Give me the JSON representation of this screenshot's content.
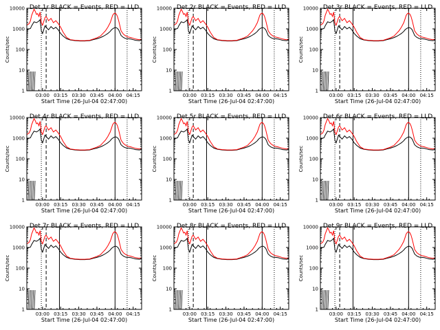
{
  "chart_data": {
    "type": "line",
    "figure": {
      "rows": 3,
      "cols": 3,
      "background": "#ffffff",
      "axis_color": "#000000",
      "series_colors": {
        "events": "#000000",
        "lld": "#ff0000"
      }
    },
    "panels": [
      {
        "title": "Det 1r BLACK = Events, RED = LLD"
      },
      {
        "title": "Det 2r BLACK = Events, RED = LLD"
      },
      {
        "title": "Det 3r BLACK = Events, RED = LLD"
      },
      {
        "title": "Det 4r BLACK = Events, RED = LLD"
      },
      {
        "title": "Det 5r BLACK = Events, RED = LLD"
      },
      {
        "title": "Det 6r BLACK = Events, RED = LLD"
      },
      {
        "title": "Det 7r BLACK = Events, RED = LLD"
      },
      {
        "title": "Det 8r BLACK = Events, RED = LLD"
      },
      {
        "title": "Det 9r BLACK = Events, RED = LLD"
      }
    ],
    "xlabel": "Start Time (26-Jul-04 02:47:00)",
    "ylabel": "Counts/sec",
    "x_unit": "minutes after 02:47:00",
    "xlim": [
      0,
      95
    ],
    "x_ticks": [
      {
        "label": "03:00",
        "value": 13
      },
      {
        "label": "03:15",
        "value": 28
      },
      {
        "label": "03:30",
        "value": 43
      },
      {
        "label": "03:45",
        "value": 58
      },
      {
        "label": "04:00",
        "value": 73
      },
      {
        "label": "04:15",
        "value": 88
      }
    ],
    "y_scale": "log",
    "ylim": [
      1,
      10000
    ],
    "y_ticks": [
      "1",
      "10",
      "100",
      "1000",
      "10000"
    ],
    "vertical_markers": {
      "dotted": [
        12,
        83
      ],
      "dashed": [
        16
      ],
      "solid": [
        27,
        73
      ]
    },
    "series": [
      {
        "name": "BLACK = Events",
        "x": [
          0,
          2,
          3,
          4,
          6,
          8,
          10,
          11,
          12,
          13,
          15,
          16,
          18,
          20,
          22,
          24,
          26,
          28,
          30,
          33,
          36,
          40,
          44,
          48,
          52,
          55,
          58,
          61,
          63,
          65,
          67,
          69,
          70,
          71,
          72,
          73,
          74,
          75,
          76,
          77,
          78,
          80,
          82,
          84,
          86,
          88,
          90,
          93,
          95
        ],
        "y": [
          900,
          1000,
          1050,
          1400,
          2200,
          2000,
          2400,
          2800,
          800,
          600,
          1400,
          1200,
          900,
          1300,
          1000,
          1200,
          900,
          600,
          450,
          330,
          290,
          270,
          260,
          260,
          270,
          300,
          330,
          380,
          430,
          500,
          600,
          750,
          900,
          1000,
          1100,
          1150,
          1150,
          1050,
          900,
          650,
          480,
          380,
          340,
          330,
          320,
          300,
          280,
          270,
          280
        ]
      },
      {
        "name": "RED = LLD",
        "x": [
          0,
          2,
          3,
          4,
          6,
          7,
          8,
          9,
          10,
          11,
          12,
          13,
          15,
          16,
          18,
          20,
          22,
          24,
          26,
          28,
          30,
          33,
          36,
          40,
          44,
          48,
          52,
          55,
          58,
          61,
          63,
          65,
          67,
          69,
          70,
          71,
          72,
          73,
          74,
          75,
          76,
          77,
          78,
          80,
          82,
          84,
          86,
          88,
          90,
          93,
          95
        ],
        "y": [
          1500,
          1800,
          2500,
          4500,
          9000,
          7000,
          5000,
          5500,
          4000,
          6500,
          2000,
          1500,
          3500,
          4000,
          2500,
          3200,
          2000,
          2500,
          1800,
          1200,
          700,
          380,
          300,
          280,
          270,
          270,
          280,
          320,
          370,
          450,
          600,
          800,
          1200,
          2000,
          3000,
          4500,
          5500,
          5800,
          5200,
          4000,
          2500,
          1400,
          800,
          550,
          450,
          400,
          380,
          350,
          320,
          300,
          320
        ]
      }
    ]
  }
}
